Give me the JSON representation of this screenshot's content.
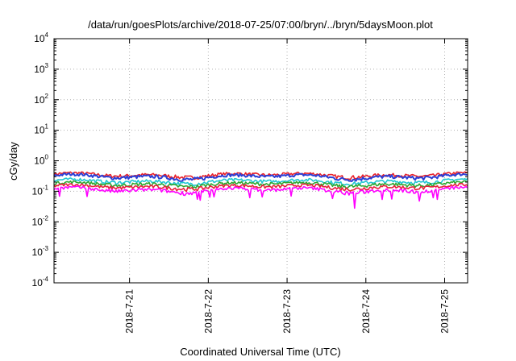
{
  "chart_data": {
    "type": "line",
    "title": "/data/run/goesPlots/archive/2018-07-25/07:00/bryn/../bryn/5daysMoon.plot",
    "xlabel": "Coordinated Universal Time (UTC)",
    "ylabel": "cGy/day",
    "yscale": "log",
    "ylim": [
      0.0001,
      10000
    ],
    "yticks": [
      {
        "value": 0.0001,
        "base": "10",
        "exp": "-4"
      },
      {
        "value": 0.001,
        "base": "10",
        "exp": "-3"
      },
      {
        "value": 0.01,
        "base": "10",
        "exp": "-2"
      },
      {
        "value": 0.1,
        "base": "10",
        "exp": "-1"
      },
      {
        "value": 1,
        "base": "10",
        "exp": "0"
      },
      {
        "value": 10,
        "base": "10",
        "exp": "1"
      },
      {
        "value": 100,
        "base": "10",
        "exp": "2"
      },
      {
        "value": 1000,
        "base": "10",
        "exp": "3"
      },
      {
        "value": 10000,
        "base": "10",
        "exp": "4"
      }
    ],
    "xlim": [
      "2018-07-20T01:00",
      "2018-07-25T07:00"
    ],
    "xticks": [
      {
        "value": "2018-07-21T00:00",
        "label": "2018-7-21"
      },
      {
        "value": "2018-07-22T00:00",
        "label": "2018-7-22"
      },
      {
        "value": "2018-07-23T00:00",
        "label": "2018-7-23"
      },
      {
        "value": "2018-07-24T00:00",
        "label": "2018-7-24"
      },
      {
        "value": "2018-07-25T00:00",
        "label": "2018-7-25"
      }
    ],
    "grid": true,
    "legend": "none",
    "series": [
      {
        "color": "#e8202a",
        "level": 0.34,
        "spread": 0.1
      },
      {
        "color": "#2b3fd6",
        "level": 0.3,
        "spread": 0.1
      },
      {
        "color": "#21c7d1",
        "level": 0.21,
        "spread": 0.06
      },
      {
        "color": "#2fa830",
        "level": 0.17,
        "spread": 0.05
      },
      {
        "color": "#e8203a",
        "level": 0.14,
        "spread": 0.04
      },
      {
        "color": "#ff00ff",
        "level": 0.11,
        "spread": 0.04
      }
    ]
  }
}
